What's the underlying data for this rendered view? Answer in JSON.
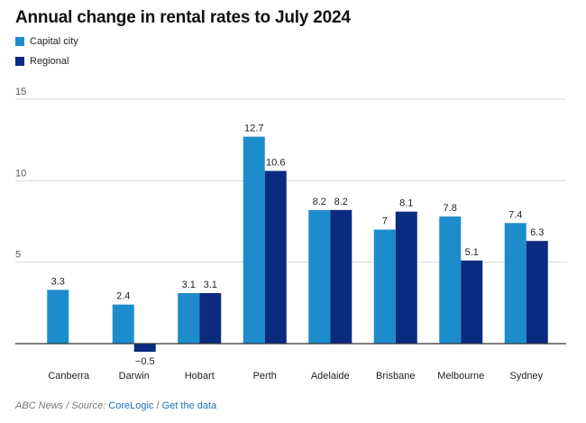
{
  "title": "Annual change in rental rates to July 2024",
  "footer": {
    "source_prefix": "ABC News / Source: ",
    "source_link": "CoreLogic",
    "separator": " / ",
    "data_link": "Get the data"
  },
  "colors": {
    "capital": "#1d8ccd",
    "regional": "#0b2b80",
    "grid": "#d9d9d9",
    "axis": "#333333"
  },
  "chart_data": {
    "type": "bar",
    "title": "Annual change in rental rates to July 2024",
    "xlabel": "",
    "ylabel": "",
    "ylim": [
      -1,
      15
    ],
    "yticks": [
      5,
      10,
      15
    ],
    "grid": true,
    "legend_position": "top-left",
    "categories": [
      "Canberra",
      "Darwin",
      "Hobart",
      "Perth",
      "Adelaide",
      "Brisbane",
      "Melbourne",
      "Sydney"
    ],
    "series": [
      {
        "name": "Capital city",
        "values": [
          3.3,
          2.4,
          3.1,
          12.7,
          8.2,
          7,
          7.8,
          7.4
        ],
        "labels": [
          "3.3",
          "2.4",
          "3.1",
          "12.7",
          "8.2",
          "7",
          "7.8",
          "7.4"
        ]
      },
      {
        "name": "Regional",
        "values": [
          null,
          -0.5,
          3.1,
          10.6,
          8.2,
          8.1,
          5.1,
          6.3
        ],
        "labels": [
          "",
          "−0.5",
          "3.1",
          "10.6",
          "8.2",
          "8.1",
          "5.1",
          "6.3"
        ]
      }
    ]
  }
}
